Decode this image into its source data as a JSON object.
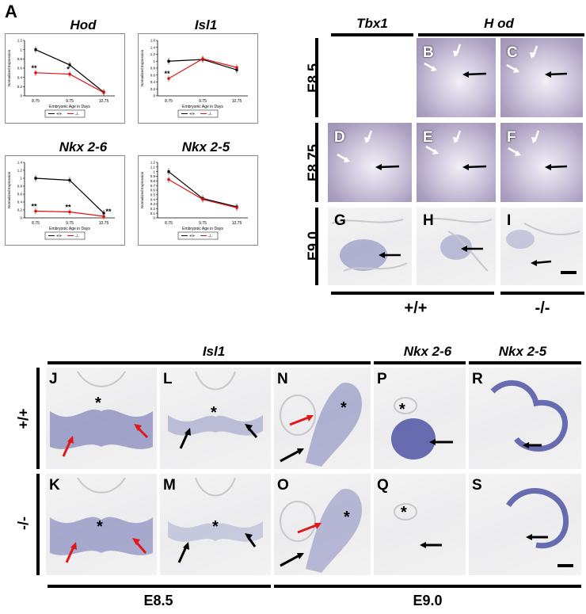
{
  "panel_A_label": "A",
  "genes": {
    "tbx1": "Tbx1",
    "hod": "H od",
    "isl1": "Isl1",
    "nkx26": "Nkx 2-6",
    "nkx25": "Nkx 2-5"
  },
  "stages": {
    "e85": "E8.5",
    "e875": "E8.75",
    "e90": "E9.0"
  },
  "genotypes": {
    "wt": "+/+",
    "ko": "-/-"
  },
  "panel_letters": {
    "B": "B",
    "C": "C",
    "D": "D",
    "E": "E",
    "F": "F",
    "G": "G",
    "H": "H",
    "I": "I",
    "J": "J",
    "K": "K",
    "L": "L",
    "M": "M",
    "N": "N",
    "O": "O",
    "P": "P",
    "Q": "Q",
    "R": "R",
    "S": "S"
  },
  "star": "*",
  "colors": {
    "wt": "#000000",
    "ko": "#e01010",
    "stain": "#2b2f8f"
  },
  "chart_data": [
    {
      "type": "line",
      "title": "Hod",
      "xlabel": "Embryonic Age in Days",
      "ylabel": "Normalized Expression",
      "categories": [
        "8.75",
        "9.75",
        "10.75"
      ],
      "ylim": [
        0,
        1.2
      ],
      "yticks": [
        "0",
        "0.2",
        "0.4",
        "0.6",
        "0.8",
        "1",
        "1.2"
      ],
      "series": [
        {
          "name": "+/+",
          "values": [
            1.0,
            0.67,
            0.08
          ]
        },
        {
          "name": "-/-",
          "values": [
            0.5,
            0.47,
            0.07
          ]
        }
      ],
      "annotations": [
        {
          "category": "8.75",
          "text": "**"
        },
        {
          "category": "9.75",
          "text": "*"
        }
      ],
      "legend": "bottom"
    },
    {
      "type": "line",
      "title": "Isl1",
      "xlabel": "Embryonic Age in Days",
      "ylabel": "Normalized Expression",
      "categories": [
        "8.75",
        "9.75",
        "10.75"
      ],
      "ylim": [
        0,
        1.6
      ],
      "yticks": [
        "0",
        "0.2",
        "0.4",
        "0.6",
        "0.8",
        "1",
        "1.2",
        "1.4",
        "1.6"
      ],
      "series": [
        {
          "name": "+/+",
          "values": [
            1.0,
            1.05,
            0.75
          ]
        },
        {
          "name": "-/-",
          "values": [
            0.5,
            1.07,
            0.82
          ]
        }
      ],
      "annotations": [
        {
          "category": "8.75",
          "text": "**"
        }
      ],
      "legend": "bottom"
    },
    {
      "type": "line",
      "title": "Nkx 2-6",
      "xlabel": "Embryonic Age in Days",
      "ylabel": "Normalized Expression",
      "categories": [
        "8.75",
        "9.75",
        "10.75"
      ],
      "ylim": [
        0,
        1.4
      ],
      "yticks": [
        "0",
        "0.2",
        "0.4",
        "0.6",
        "0.8",
        "1",
        "1.2",
        "1.4"
      ],
      "series": [
        {
          "name": "+/+",
          "values": [
            1.0,
            0.95,
            0.12
          ]
        },
        {
          "name": "-/-",
          "values": [
            0.17,
            0.15,
            0.04
          ]
        }
      ],
      "annotations": [
        {
          "category": "8.75",
          "text": "**"
        },
        {
          "category": "9.75",
          "text": "**"
        },
        {
          "category": "10.75",
          "text": "**"
        }
      ],
      "legend": "bottom"
    },
    {
      "type": "line",
      "title": "Nkx 2-5",
      "xlabel": "Embryonic Age in Days",
      "ylabel": "Normalized Expression",
      "categories": [
        "8.75",
        "9.75",
        "10.75"
      ],
      "ylim": [
        0,
        1.2
      ],
      "yticks": [
        "0",
        "0.1",
        "0.2",
        "0.3",
        "0.4",
        "0.5",
        "0.6",
        "0.7",
        "0.8",
        "0.9",
        "1",
        "1.1",
        "1.2"
      ],
      "series": [
        {
          "name": "+/+",
          "values": [
            1.0,
            0.42,
            0.24
          ]
        },
        {
          "name": "-/-",
          "values": [
            0.83,
            0.4,
            0.22
          ]
        }
      ],
      "annotations": [],
      "legend": "bottom"
    }
  ]
}
